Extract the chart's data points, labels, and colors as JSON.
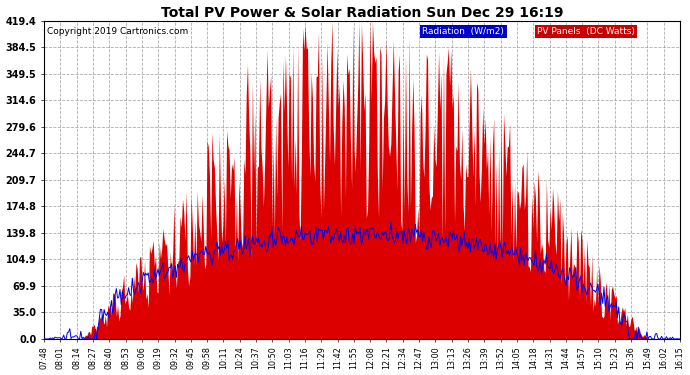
{
  "title": "Total PV Power & Solar Radiation Sun Dec 29 16:19",
  "copyright": "Copyright 2019 Cartronics.com",
  "yticks": [
    0.0,
    35.0,
    69.9,
    104.9,
    139.8,
    174.8,
    209.7,
    244.7,
    279.6,
    314.6,
    349.5,
    384.5,
    419.4
  ],
  "ymax": 419.4,
  "ymin": 0.0,
  "legend_radiation_label": "Radiation  (W/m2)",
  "legend_pv_label": "PV Panels  (DC Watts)",
  "legend_radiation_bg": "#0000cc",
  "legend_pv_bg": "#cc0000",
  "legend_text_color": "#ffffff",
  "pv_color": "#dd0000",
  "radiation_color": "#0000ee",
  "bg_color": "#ffffff",
  "grid_color": "#999999",
  "xtick_labels": [
    "07:48",
    "08:01",
    "08:14",
    "08:27",
    "08:40",
    "08:53",
    "09:06",
    "09:19",
    "09:32",
    "09:45",
    "09:58",
    "10:11",
    "10:24",
    "10:37",
    "10:50",
    "11:03",
    "11:16",
    "11:29",
    "11:42",
    "11:55",
    "12:08",
    "12:21",
    "12:34",
    "12:47",
    "13:00",
    "13:13",
    "13:26",
    "13:39",
    "13:52",
    "14:05",
    "14:18",
    "14:31",
    "14:44",
    "14:57",
    "15:10",
    "15:23",
    "15:36",
    "15:49",
    "16:02",
    "16:15"
  ],
  "num_points": 520,
  "pv_peak": 419.4,
  "radiation_max": 140.0
}
